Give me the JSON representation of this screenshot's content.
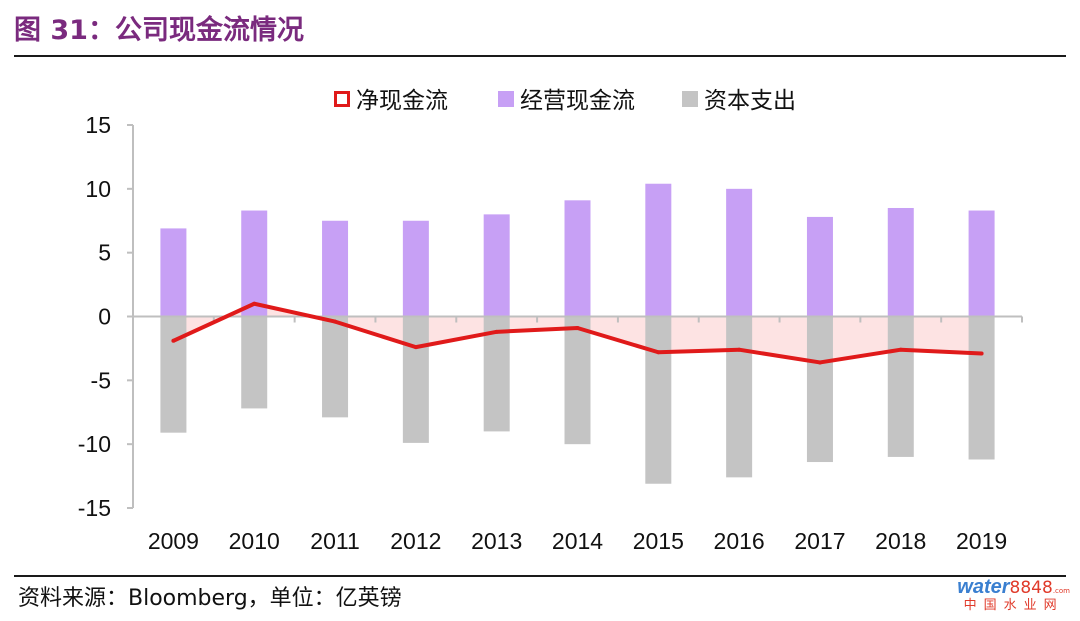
{
  "header": {
    "title": "图 31：公司现金流情况"
  },
  "footer": {
    "source": "资料来源：Bloomberg，单位：亿英镑",
    "watermark": {
      "brand": "water",
      "number": "8848",
      "domain": ".com",
      "cn": "中国水业网"
    }
  },
  "colors": {
    "net": "#e01a1a",
    "net_fill": "#fde3e3",
    "operating": "#c7a0f5",
    "capex": "#c4c4c4",
    "axis": "#bfbfbf"
  },
  "chart_data": {
    "type": "bar",
    "title": "",
    "categories": [
      "2009",
      "2010",
      "2011",
      "2012",
      "2013",
      "2014",
      "2015",
      "2016",
      "2017",
      "2018",
      "2019"
    ],
    "ylim": [
      -15,
      15
    ],
    "yticks": [
      15,
      10,
      5,
      0,
      -5,
      -10,
      -15
    ],
    "legend": [
      "净现金流",
      "经营现金流",
      "资本支出"
    ],
    "legend_position": "top",
    "series": [
      {
        "name": "经营现金流",
        "kind": "bar",
        "values": [
          6.9,
          8.3,
          7.5,
          7.5,
          8.0,
          9.1,
          10.4,
          10.0,
          7.8,
          8.5,
          8.3
        ]
      },
      {
        "name": "资本支出",
        "kind": "bar",
        "values": [
          -9.1,
          -7.2,
          -7.9,
          -9.9,
          -9.0,
          -10.0,
          -13.1,
          -12.6,
          -11.4,
          -11.0,
          -11.2
        ]
      },
      {
        "name": "净现金流",
        "kind": "line-area",
        "values": [
          -1.9,
          1.0,
          -0.4,
          -2.4,
          -1.2,
          -0.9,
          -2.8,
          -2.6,
          -3.6,
          -2.6,
          -2.9
        ]
      }
    ]
  }
}
